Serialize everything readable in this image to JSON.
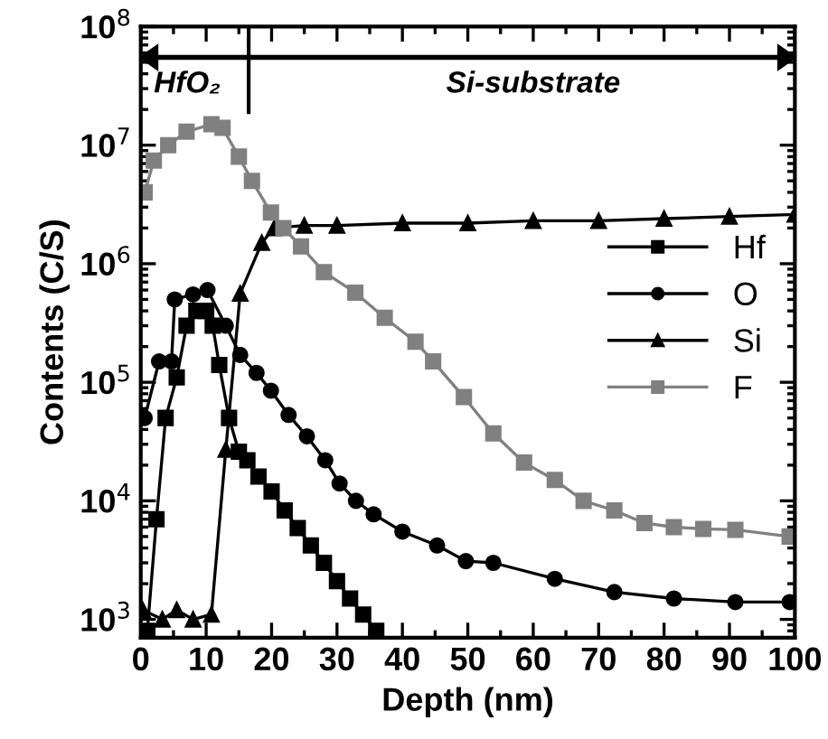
{
  "chart_data": {
    "type": "line",
    "xlabel": "Depth (nm)",
    "ylabel": "Contents (C/S)",
    "log": "y",
    "xlim": [
      0,
      100
    ],
    "xticks": [
      0,
      10,
      20,
      30,
      40,
      50,
      60,
      70,
      80,
      90,
      100
    ],
    "ylim": [
      700,
      100000000
    ],
    "yticks": [
      {
        "value": 1000,
        "label": "10$^{3}$"
      },
      {
        "value": 10000,
        "label": "10$^{4}$"
      },
      {
        "value": 100000,
        "label": "10$^{5}$"
      },
      {
        "value": 1000000,
        "label": "10$^{6}$"
      },
      {
        "value": 10000000,
        "label": "10$^{7}$"
      },
      {
        "value": 100000000,
        "label": "10$^{8}$"
      }
    ],
    "grid": false,
    "legend": "center right",
    "line_style": "solid",
    "annotations": [
      "HfO₂",
      "Si-substrate"
    ],
    "ref_lines": [
      {
        "axis": "x",
        "value": 16.5,
        "label": null,
        "color": "#000000"
      },
      {
        "axis": "y",
        "value": 55000000,
        "label": null,
        "color": "#000000"
      }
    ],
    "series": [
      {
        "name": "Hf",
        "color": "#000000",
        "marker": "square",
        "x": [
          1,
          2.4,
          3.8,
          5.5,
          7,
          8.5,
          10,
          11,
          12,
          13.5,
          15,
          16.3,
          18,
          20,
          22,
          24,
          26,
          28,
          30,
          32,
          34,
          36
        ],
        "values": [
          800,
          7000,
          50000,
          110000,
          300000,
          400000,
          400000,
          300000,
          140000,
          50000,
          26000,
          22000,
          16000,
          12000,
          8300,
          5900,
          4200,
          3000,
          2100,
          1500,
          1100,
          800
        ]
      },
      {
        "name": "O",
        "color": "#000000",
        "marker": "circle",
        "x": [
          0.6,
          2.8,
          4.7,
          5.2,
          8,
          10.2,
          13,
          15.2,
          17.7,
          19.9,
          22.6,
          25.4,
          28.2,
          30.4,
          32.9,
          35.6,
          40,
          45.3,
          49.7,
          53.9,
          63.3,
          72.4,
          81.5,
          90.9,
          99.2
        ],
        "values": [
          50000,
          150000,
          150000,
          500000,
          550000,
          600000,
          300000,
          170000,
          120000,
          85000,
          53000,
          35000,
          22000,
          14000,
          10000,
          7700,
          5500,
          4200,
          3100,
          3000,
          2200,
          1700,
          1500,
          1400,
          1400
        ]
      },
      {
        "name": "Si",
        "color": "#000000",
        "marker": "triangle",
        "x": [
          0.3,
          3.3,
          5.5,
          8,
          10.8,
          13,
          15.2,
          18.5,
          20.4,
          25,
          30,
          40,
          50,
          60,
          70,
          80,
          90,
          100
        ],
        "values": [
          1200,
          1000,
          1200,
          1000,
          1100,
          27000,
          560000,
          1500000,
          2000000,
          2100000,
          2100000,
          2200000,
          2200000,
          2300000,
          2300000,
          2400000,
          2500000,
          2600000
        ]
      },
      {
        "name": "F",
        "color": "#808080",
        "marker": "square",
        "x": [
          0.6,
          2,
          4.2,
          7,
          10.8,
          12.5,
          15,
          17,
          19.9,
          21.8,
          24.5,
          28,
          32.8,
          37.3,
          42,
          44.7,
          49.4,
          53.9,
          58.6,
          63.3,
          67.7,
          72.4,
          77,
          81.5,
          86,
          90.9,
          99.2
        ],
        "values": [
          4000000,
          7400000,
          10000000,
          13000000,
          15000000,
          14000000,
          8000000,
          5000000,
          2700000,
          2000000,
          1400000,
          850000,
          570000,
          350000,
          220000,
          150000,
          75000,
          37000,
          21000,
          15000,
          10000,
          8300,
          6500,
          6000,
          5800,
          5700,
          5000
        ]
      }
    ]
  }
}
